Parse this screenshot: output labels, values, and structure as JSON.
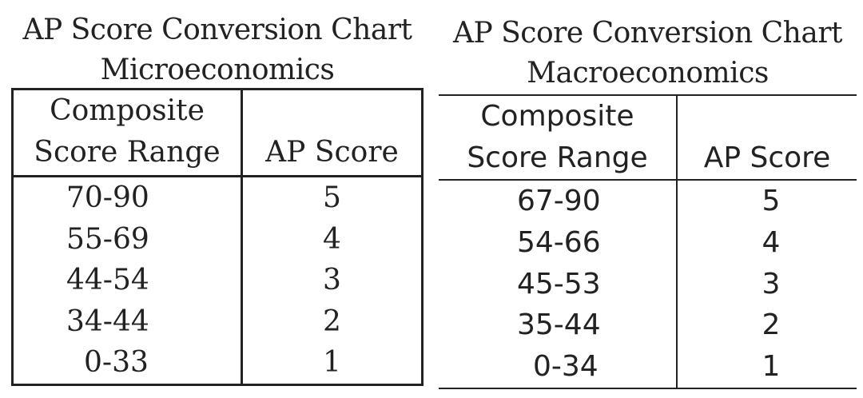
{
  "micro": {
    "title_line1": "AP Score Conversion Chart",
    "title_line2": "Microeconomics",
    "header_range_line1": "Composite",
    "header_range_line2": "Score Range",
    "header_score": "AP Score",
    "rows": [
      {
        "range": "70-90",
        "score": "5"
      },
      {
        "range": "55-69",
        "score": "4"
      },
      {
        "range": "44-54",
        "score": "3"
      },
      {
        "range": "34-44",
        "score": "2"
      },
      {
        "range": "0-33",
        "score": "1"
      }
    ]
  },
  "macro": {
    "title_line1": "AP Score Conversion Chart",
    "title_line2": "Macroeconomics",
    "header_range_line1": "Composite",
    "header_range_line2": "Score Range",
    "header_score": "AP Score",
    "rows": [
      {
        "range": "67-90",
        "score": "5"
      },
      {
        "range": "54-66",
        "score": "4"
      },
      {
        "range": "45-53",
        "score": "3"
      },
      {
        "range": "35-44",
        "score": "2"
      },
      {
        "range": "0-34",
        "score": "1"
      }
    ]
  }
}
